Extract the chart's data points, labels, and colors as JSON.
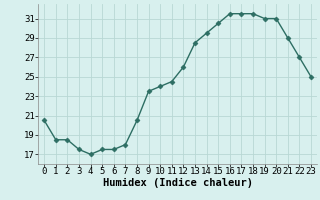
{
  "x": [
    0,
    1,
    2,
    3,
    4,
    5,
    6,
    7,
    8,
    9,
    10,
    11,
    12,
    13,
    14,
    15,
    16,
    17,
    18,
    19,
    20,
    21,
    22,
    23
  ],
  "y": [
    20.5,
    18.5,
    18.5,
    17.5,
    17.0,
    17.5,
    17.5,
    18.0,
    20.5,
    23.5,
    24.0,
    24.5,
    26.0,
    28.5,
    29.5,
    30.5,
    31.5,
    31.5,
    31.5,
    31.0,
    31.0,
    29.0,
    27.0,
    25.0
  ],
  "xlabel": "Humidex (Indice chaleur)",
  "xlim": [
    -0.5,
    23.5
  ],
  "ylim": [
    16.0,
    32.5
  ],
  "yticks": [
    17,
    19,
    21,
    23,
    25,
    27,
    29,
    31
  ],
  "xticks": [
    0,
    1,
    2,
    3,
    4,
    5,
    6,
    7,
    8,
    9,
    10,
    11,
    12,
    13,
    14,
    15,
    16,
    17,
    18,
    19,
    20,
    21,
    22,
    23
  ],
  "line_color": "#2d6e63",
  "marker": "D",
  "marker_size": 2.5,
  "bg_color": "#d8f0ee",
  "grid_color": "#b8d8d4",
  "xlabel_fontsize": 7.5,
  "tick_fontsize": 6.5
}
